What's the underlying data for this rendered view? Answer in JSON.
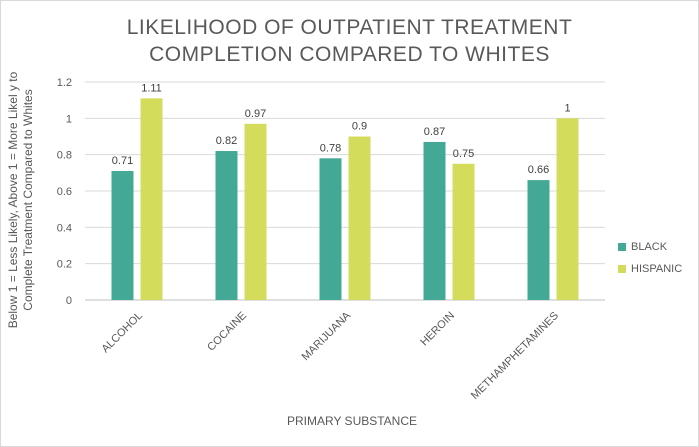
{
  "chart_data": {
    "type": "bar",
    "title_line1": "LIKELIHOOD OF OUTPATIENT TREATMENT",
    "title_line2": "COMPLETION COMPARED TO WHITES",
    "xlabel": "PRIMARY SUBSTANCE",
    "ylabel_line1": "Below 1 = Less Likely, Above 1 = More Likel y to",
    "ylabel_line2": "Complete Treatment Compared to Whites",
    "ylim": [
      0,
      1.2
    ],
    "yticks": [
      0,
      0.2,
      0.4,
      0.6,
      0.8,
      1,
      1.2
    ],
    "ytick_labels": [
      "0",
      "0.2",
      "0.4",
      "0.6",
      "0.8",
      "1",
      "1.2"
    ],
    "categories": [
      "ALCOHOL",
      "COCAINE",
      "MARIJUANA",
      "HEROIN",
      "METHAMPHETAMINES"
    ],
    "series": [
      {
        "name": "BLACK",
        "color": "#43a896",
        "values": [
          0.71,
          0.82,
          0.78,
          0.87,
          0.66
        ],
        "labels": [
          "0.71",
          "0.82",
          "0.78",
          "0.87",
          "0.66"
        ]
      },
      {
        "name": "HISPANIC",
        "color": "#d4dc5c",
        "values": [
          1.11,
          0.97,
          0.9,
          0.75,
          1
        ],
        "labels": [
          "1.11",
          "0.97",
          "0.9",
          "0.75",
          "1"
        ]
      }
    ],
    "grid": true,
    "legend_position": "right"
  }
}
